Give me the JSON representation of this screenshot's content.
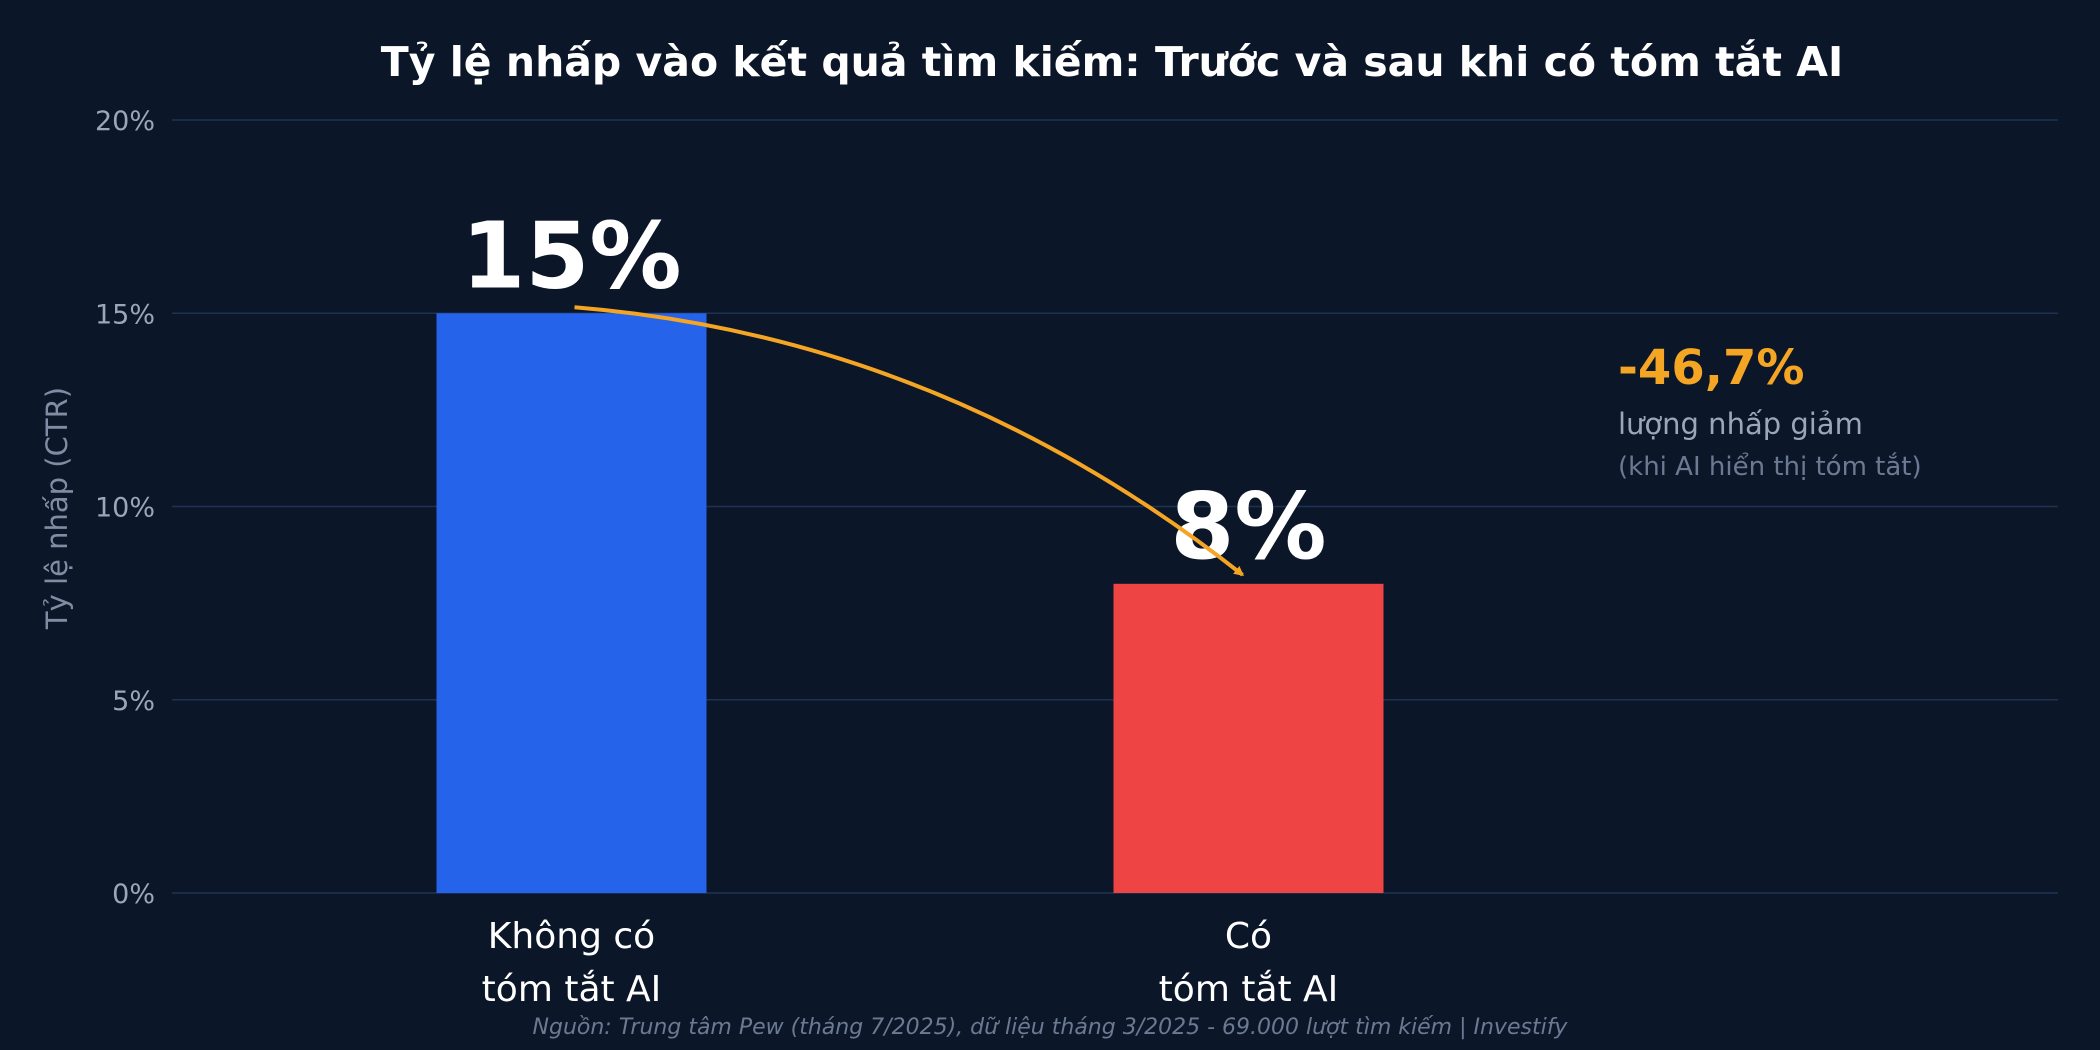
{
  "chart_data": {
    "type": "bar",
    "title": "Tỷ lệ nhấp vào kết quả tìm kiếm: Trước và sau khi có tóm tắt AI",
    "ylabel": "Tỷ lệ nhấp (CTR)",
    "ylim": [
      0,
      20
    ],
    "yticks": [
      0,
      5,
      10,
      15,
      20
    ],
    "ytick_labels": [
      "0%",
      "5%",
      "10%",
      "15%",
      "20%"
    ],
    "grid": true,
    "categories": [
      {
        "lines": [
          "Không có",
          "tóm tắt AI"
        ],
        "value": 15,
        "label": "15%",
        "color": "#2563eb"
      },
      {
        "lines": [
          "Có",
          "tóm tắt AI"
        ],
        "value": 8,
        "label": "8%",
        "color": "#ef4444"
      }
    ],
    "annotation": {
      "change": "-46,7%",
      "line1": "lượng nhấp giảm",
      "line2": "(khi AI hiển thị tóm tắt)",
      "color": "#f5a524"
    },
    "source": "Nguồn: Trung tâm Pew (tháng 7/2025), dữ liệu tháng 3/2025 - 69.000 lượt tìm kiếm | Investify"
  }
}
